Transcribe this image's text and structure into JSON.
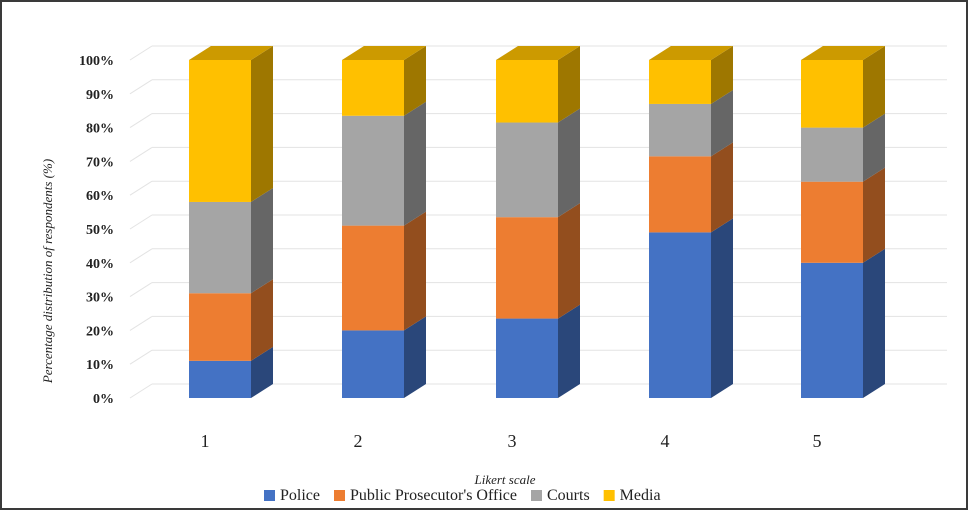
{
  "chart_data": {
    "type": "bar",
    "stacked": true,
    "three_d": true,
    "ylabel": "Percentage distribution of respondents (%)",
    "xlabel": "Likert scale",
    "categories": [
      "1",
      "2",
      "3",
      "4",
      "5"
    ],
    "ylim": [
      0,
      100
    ],
    "yticks": [
      "0%",
      "10%",
      "20%",
      "30%",
      "40%",
      "50%",
      "60%",
      "70%",
      "80%",
      "90%",
      "100%"
    ],
    "grid": true,
    "legend_position": "bottom",
    "series": [
      {
        "name": "Police",
        "color": "#4472C4",
        "values": [
          11,
          20,
          23.5,
          49,
          40
        ]
      },
      {
        "name": "Public Prosecutor's Office",
        "color": "#ED7D31",
        "values": [
          20,
          31,
          30,
          22.5,
          24
        ]
      },
      {
        "name": "Courts",
        "color": "#A5A5A5",
        "values": [
          27,
          32.5,
          28,
          15.5,
          16
        ]
      },
      {
        "name": "Media",
        "color": "#FFC000",
        "values": [
          42,
          16.5,
          18.5,
          13,
          20
        ]
      }
    ]
  }
}
